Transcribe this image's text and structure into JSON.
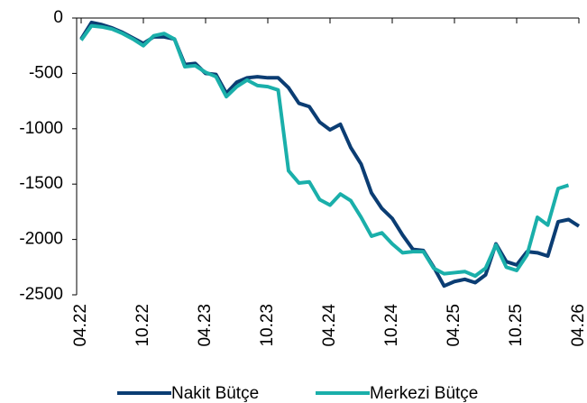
{
  "chart_data": {
    "type": "line",
    "categories": [
      "04.22",
      null,
      null,
      null,
      null,
      null,
      "10.22",
      null,
      null,
      null,
      null,
      null,
      "04.23",
      null,
      null,
      null,
      null,
      null,
      "10.23",
      null,
      null,
      null,
      null,
      null,
      "04.24",
      null,
      null,
      null,
      null,
      null,
      "10.24",
      null,
      null,
      null,
      null,
      null,
      "04.25",
      null,
      null,
      null,
      null,
      null,
      "10.25",
      null,
      null,
      null,
      null,
      null,
      "04.26"
    ],
    "series": [
      {
        "name": "Nakit Bütçe",
        "color": "#0b3d73",
        "values": [
          -190,
          -40,
          -60,
          -90,
          -130,
          -180,
          -230,
          -170,
          -170,
          -190,
          -420,
          -410,
          -500,
          -510,
          -680,
          -580,
          -540,
          -530,
          -540,
          -540,
          -630,
          -770,
          -800,
          -940,
          -1010,
          -960,
          -1170,
          -1320,
          -1580,
          -1720,
          -1810,
          -1960,
          -2090,
          -2100,
          -2250,
          -2420,
          -2380,
          -2360,
          -2390,
          -2320,
          -2040,
          -2200,
          -2230,
          -2110,
          -2120,
          -2150,
          -1840,
          -1820,
          -1880
        ]
      },
      {
        "name": "Merkezi Bütçe",
        "color": "#1aafaa",
        "values": [
          -200,
          -70,
          -80,
          -100,
          -140,
          -190,
          -250,
          -160,
          -140,
          -190,
          -440,
          -430,
          -490,
          -530,
          -710,
          -620,
          -560,
          -610,
          -620,
          -650,
          -1380,
          -1490,
          -1480,
          -1640,
          -1690,
          -1590,
          -1650,
          -1800,
          -1970,
          -1940,
          -2040,
          -2120,
          -2110,
          -2110,
          -2260,
          -2310,
          -2300,
          -2290,
          -2330,
          -2260,
          -2050,
          -2250,
          -2280,
          -2140,
          -1800,
          -1870,
          -1540,
          -1510,
          null
        ]
      }
    ],
    "ylim": [
      -2500,
      0
    ],
    "yticks": [
      0,
      -500,
      -1000,
      -1500,
      -2000,
      -2500
    ],
    "grid": false
  }
}
